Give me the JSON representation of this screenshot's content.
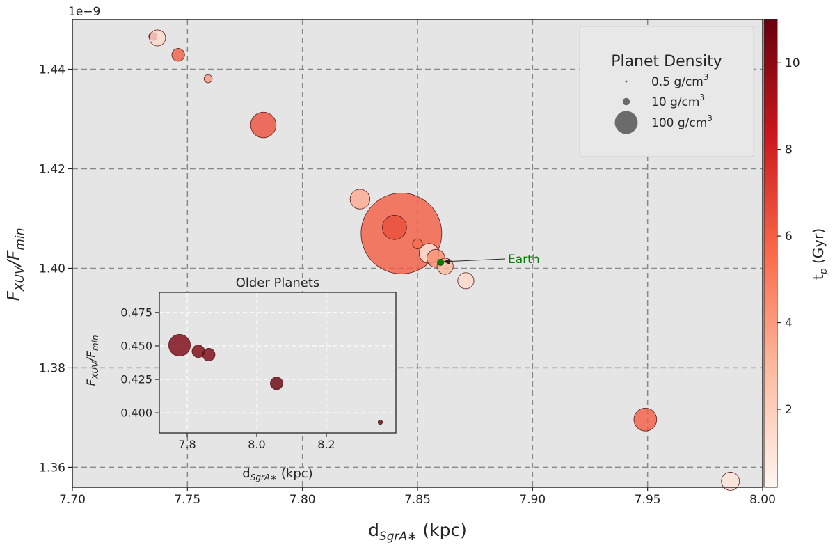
{
  "chart_data": [
    {
      "type": "scatter",
      "title": "",
      "xlabel": "d",
      "xlabel_sub": "SgrA∗",
      "xlabel_unit": " (kpc)",
      "ylabel": "F",
      "ylabel_sub1": "XUV",
      "ylabel_mid": "/F",
      "ylabel_sub2": "min",
      "offset_text": "1e−9",
      "xlim": [
        7.7,
        8.0
      ],
      "ylim": [
        1.356,
        1.45
      ],
      "y_scale_note": "1e-9",
      "grid": true,
      "x_ticks": [
        "7.70",
        "7.75",
        "7.80",
        "7.85",
        "7.90",
        "7.95",
        "8.00"
      ],
      "x_tick_values": [
        7.7,
        7.75,
        7.8,
        7.85,
        7.9,
        7.95,
        8.0
      ],
      "y_ticks": [
        "1.36",
        "1.38",
        "1.40",
        "1.42",
        "1.44"
      ],
      "y_tick_values": [
        1.36,
        1.38,
        1.4,
        1.42,
        1.44
      ],
      "colorbar": {
        "label": "t",
        "label_sub": "p",
        "label_unit": " (Gyr)",
        "range": [
          0.2,
          11
        ],
        "ticks": [
          "2",
          "4",
          "6",
          "8",
          "10"
        ],
        "tick_values": [
          2,
          4,
          6,
          8,
          10
        ],
        "colors": [
          "#fff5f0",
          "#fcbba1",
          "#fb6a4a",
          "#cb181d",
          "#67000d"
        ]
      },
      "legend": {
        "title": "Planet Density",
        "placement": "top-right",
        "entries": [
          {
            "label": "0.5 g/cm",
            "sup": "3",
            "density": 0.5
          },
          {
            "label": "10 g/cm",
            "sup": "3",
            "density": 10
          },
          {
            "label": "100 g/cm",
            "sup": "3",
            "density": 100
          }
        ]
      },
      "points": [
        {
          "x": 7.735,
          "y": 1.4466,
          "age": 9.5,
          "density": 1.0
        },
        {
          "x": 7.737,
          "y": 1.4463,
          "age": 1.5,
          "density": 4.0
        },
        {
          "x": 7.746,
          "y": 1.4429,
          "age": 6.0,
          "density": 2.5
        },
        {
          "x": 7.759,
          "y": 1.4381,
          "age": 4.0,
          "density": 1.0
        },
        {
          "x": 7.783,
          "y": 1.4288,
          "age": 6.5,
          "density": 10
        },
        {
          "x": 7.825,
          "y": 1.4139,
          "age": 3.5,
          "density": 6
        },
        {
          "x": 7.843,
          "y": 1.407,
          "age": 6.0,
          "density": 100
        },
        {
          "x": 7.84,
          "y": 1.4082,
          "age": 6.5,
          "density": 9
        },
        {
          "x": 7.85,
          "y": 1.4049,
          "age": 5.5,
          "density": 1.5
        },
        {
          "x": 7.855,
          "y": 1.403,
          "age": 0.8,
          "density": 6
        },
        {
          "x": 7.858,
          "y": 1.402,
          "age": 4.5,
          "density": 5
        },
        {
          "x": 7.862,
          "y": 1.4004,
          "age": 3.0,
          "density": 4
        },
        {
          "x": 7.871,
          "y": 1.3975,
          "age": 1.5,
          "density": 4
        },
        {
          "x": 7.949,
          "y": 1.3696,
          "age": 6.0,
          "density": 8
        },
        {
          "x": 7.986,
          "y": 1.3572,
          "age": 1.0,
          "density": 5
        }
      ],
      "earth": {
        "x": 7.86,
        "y": 1.4012,
        "color": "#008000",
        "label": "Earth"
      }
    },
    {
      "type": "scatter",
      "title": "Older Planets",
      "xlabel": "d",
      "xlabel_sub": "SgrA∗",
      "xlabel_unit": " (kpc)",
      "ylabel": "F",
      "ylabel_sub1": "XUV",
      "ylabel_mid": "/F",
      "ylabel_sub2": "min",
      "xlim": [
        7.72,
        8.4
      ],
      "ylim": [
        0.385,
        0.49
      ],
      "grid": true,
      "x_ticks": [
        "7.8",
        "8.0",
        "8.2"
      ],
      "x_tick_values": [
        7.8,
        8.0,
        8.2
      ],
      "y_ticks": [
        "0.400",
        "0.425",
        "0.450",
        "0.475"
      ],
      "y_tick_values": [
        0.4,
        0.425,
        0.45,
        0.475
      ],
      "points": [
        {
          "x": 7.778,
          "y": 0.4505,
          "age": 10.5,
          "density": 12
        },
        {
          "x": 7.832,
          "y": 0.446,
          "age": 10.5,
          "density": 4
        },
        {
          "x": 7.862,
          "y": 0.4435,
          "age": 10.5,
          "density": 4
        },
        {
          "x": 8.057,
          "y": 0.422,
          "age": 11,
          "density": 4
        },
        {
          "x": 8.355,
          "y": 0.393,
          "age": 11,
          "density": 0.5
        }
      ]
    }
  ]
}
